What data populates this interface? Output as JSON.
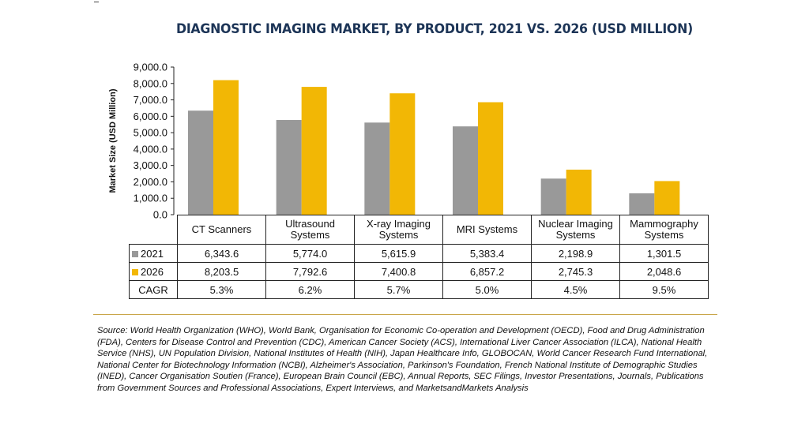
{
  "chart_data": {
    "type": "bar",
    "title": "DIAGNOSTIC IMAGING MARKET, BY PRODUCT, 2021 VS. 2026 (USD MILLION)",
    "ylabel": "Market Size (USD Million)",
    "xlabel": "",
    "ylim": [
      0,
      9000
    ],
    "yticks": [
      "9,000.0",
      "8,000.0",
      "7,000.0",
      "6,000.0",
      "5,000.0",
      "4,000.0",
      "3,000.0",
      "2,000.0",
      "1,000.0",
      "0.0"
    ],
    "ytick_values": [
      9000,
      8000,
      7000,
      6000,
      5000,
      4000,
      3000,
      2000,
      1000,
      0
    ],
    "grid": false,
    "categories": [
      "CT Scanners",
      "Ultrasound Systems",
      "X-ray Imaging Systems",
      "MRI Systems",
      "Nuclear Imaging Systems",
      "Mammography Systems"
    ],
    "series": [
      {
        "name": "2021",
        "color": "#999999",
        "values": [
          6343.6,
          5774.0,
          5615.9,
          5383.4,
          2198.9,
          1301.5
        ],
        "labels": [
          "6,343.6",
          "5,774.0",
          "5,615.9",
          "5,383.4",
          "2,198.9",
          "1,301.5"
        ]
      },
      {
        "name": "2026",
        "color": "#f2b705",
        "values": [
          8203.5,
          7792.6,
          7400.8,
          6857.2,
          2745.3,
          2048.6
        ],
        "labels": [
          "8,203.5",
          "7,792.6",
          "7,400.8",
          "6,857.2",
          "2,745.3",
          "2,048.6"
        ]
      }
    ],
    "cagr": {
      "label": "CAGR",
      "values": [
        "5.3%",
        "6.2%",
        "5.7%",
        "5.0%",
        "4.5%",
        "9.5%"
      ]
    }
  },
  "source_note": "Source: World Health Organization (WHO), World Bank, Organisation for Economic Co-operation and Development (OECD), Food and Drug Administration (FDA), Centers for Disease Control and Prevention (CDC), American Cancer Society (ACS), International Liver Cancer Association (ILCA), National Health Service (NHS), UN Population Division, National Institutes of Health (NIH), Japan Healthcare Info, GLOBOCAN, World Cancer Research Fund International, National Center for Biotechnology Information (NCBI), Alzheimer's Association, Parkinson's Foundation, French National Institute of Demographic Studies (INED), Cancer Organisation Soutien (France), European Brain Council (EBC), Annual Reports, SEC Filings, Investor Presentations, Journals, Publications from Government Sources and Professional Associations, Expert Interviews, and MarketsandMarkets Analysis"
}
